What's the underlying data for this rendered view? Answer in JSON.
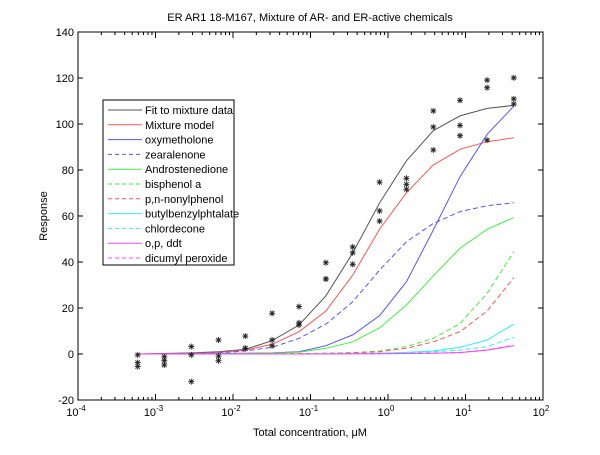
{
  "chart_data": {
    "type": "line",
    "title": "ER AR1 18-M167, Mixture of AR- and ER-active chemicals",
    "xlabel": "Total concentration, μM",
    "ylabel": "Response",
    "xscale": "log",
    "xlim": [
      0.0001,
      100
    ],
    "ylim": [
      -20,
      140
    ],
    "yticks": [
      -20,
      0,
      20,
      40,
      60,
      80,
      100,
      120,
      140
    ],
    "xtick_exponents": [
      "-4",
      "-3",
      "-2",
      "-1",
      "0",
      "1",
      "2"
    ],
    "xtick_base": "10",
    "grid": false,
    "legend_position": "upper-left",
    "x": [
      0.00059,
      0.0013,
      0.0029,
      0.0065,
      0.0144,
      0.032,
      0.071,
      0.158,
      0.35,
      0.78,
      1.73,
      3.84,
      8.5,
      19,
      42
    ],
    "series": [
      {
        "name": "Fit to mixture data",
        "color": "#555555",
        "dash": false,
        "values": [
          0,
          0.2,
          0.5,
          1,
          2,
          5.8,
          12.6,
          25.3,
          43.9,
          65.7,
          84,
          97.1,
          103.5,
          106.8,
          108.1
        ]
      },
      {
        "name": "Mixture model",
        "color": "#ff5555",
        "dash": false,
        "values": [
          0,
          0.1,
          0.3,
          0.7,
          1.7,
          4.2,
          9.7,
          18.7,
          34.3,
          54.3,
          70.1,
          82.2,
          89,
          92.3,
          94
        ]
      },
      {
        "name": "oxymetholone",
        "color": "#5555ff",
        "dash": false,
        "values": [
          0,
          0,
          0.1,
          0.2,
          0.3,
          0.5,
          1,
          3.6,
          8.3,
          16.7,
          31.4,
          53.9,
          77.1,
          95.5,
          107.8
        ]
      },
      {
        "name": "zearalenone",
        "color": "#5555ff",
        "dash": true,
        "values": [
          0,
          0.1,
          0.2,
          0.5,
          1.3,
          2.9,
          6.8,
          13,
          22.7,
          36.5,
          48.8,
          56.8,
          61.9,
          64.5,
          65.8
        ]
      },
      {
        "name": "Androstenedione",
        "color": "#44ee44",
        "dash": false,
        "values": [
          0,
          0,
          0.05,
          0.1,
          0.2,
          0.4,
          0.8,
          2.5,
          5.3,
          11.4,
          21.3,
          34,
          46,
          54.2,
          59.3
        ]
      },
      {
        "name": "bisphenol a",
        "color": "#44ee44",
        "dash": true,
        "values": [
          0,
          0,
          0,
          0,
          0.05,
          0.1,
          0.15,
          0.3,
          0.6,
          1.3,
          3.2,
          6.8,
          13.3,
          26.4,
          44.5
        ]
      },
      {
        "name": "p,n-nonylphenol",
        "color": "#ff5555",
        "dash": true,
        "values": [
          0,
          0,
          0,
          0,
          0.05,
          0.1,
          0.15,
          0.3,
          0.5,
          1,
          2.5,
          5.3,
          9.7,
          18.7,
          33.2
        ]
      },
      {
        "name": "butylbenzylphtalate",
        "color": "#33eeee",
        "dash": false,
        "values": [
          0,
          0,
          0,
          0,
          0,
          0,
          0,
          0.1,
          0.2,
          0.4,
          0.7,
          1.3,
          2.9,
          6.1,
          13
        ]
      },
      {
        "name": "chlordecone",
        "color": "#33eeee",
        "dash": true,
        "values": [
          0,
          0,
          0,
          0,
          0,
          0,
          0,
          0.1,
          0.15,
          0.3,
          0.5,
          0.9,
          1.7,
          3.2,
          7.3
        ]
      },
      {
        "name": "o,p, ddt",
        "color": "#ff44ff",
        "dash": false,
        "values": [
          0,
          0,
          0,
          0,
          0,
          0,
          0,
          0,
          0.1,
          0.15,
          0.2,
          0.3,
          0.6,
          1.7,
          3.6
        ]
      },
      {
        "name": "dicumyl peroxide",
        "color": "#ff44ff",
        "dash": true,
        "values": [
          0,
          0,
          0,
          0,
          0,
          0,
          0,
          0,
          0.1,
          0.15,
          0.2,
          0.35,
          0.7,
          1.8,
          3.8
        ]
      }
    ],
    "data_points": [
      [
        0.00059,
        -0.4
      ],
      [
        0.00059,
        -3.8
      ],
      [
        0.00059,
        -5.5
      ],
      [
        0.0013,
        -1.2
      ],
      [
        0.0013,
        -2.9
      ],
      [
        0.0013,
        -4.8
      ],
      [
        0.0029,
        3.2
      ],
      [
        0.0029,
        -0.4
      ],
      [
        0.0029,
        -12
      ],
      [
        0.0065,
        6.1
      ],
      [
        0.0065,
        -0.9
      ],
      [
        0.0065,
        -2.9
      ],
      [
        0.0144,
        7.8
      ],
      [
        0.0144,
        2.5
      ],
      [
        0.0144,
        2.5
      ],
      [
        0.032,
        17.7
      ],
      [
        0.032,
        6.1
      ],
      [
        0.032,
        3.5
      ],
      [
        0.071,
        20.6
      ],
      [
        0.071,
        13.5
      ],
      [
        0.071,
        12.6
      ],
      [
        0.158,
        39.7
      ],
      [
        0.158,
        32.6
      ],
      [
        0.158,
        32.6
      ],
      [
        0.35,
        46.5
      ],
      [
        0.35,
        44
      ],
      [
        0.35,
        39
      ],
      [
        0.78,
        74.7
      ],
      [
        0.78,
        62.2
      ],
      [
        0.78,
        57.8
      ],
      [
        1.73,
        76.4
      ],
      [
        1.73,
        73.8
      ],
      [
        1.73,
        71.6
      ],
      [
        3.84,
        105.7
      ],
      [
        3.84,
        98.7
      ],
      [
        3.84,
        88.7
      ],
      [
        8.5,
        110.3
      ],
      [
        8.5,
        99.4
      ],
      [
        8.5,
        94.9
      ],
      [
        19,
        119.1
      ],
      [
        19,
        115.8
      ],
      [
        19,
        93
      ],
      [
        42,
        120.1
      ],
      [
        42,
        110.9
      ],
      [
        42,
        108.7
      ]
    ]
  }
}
